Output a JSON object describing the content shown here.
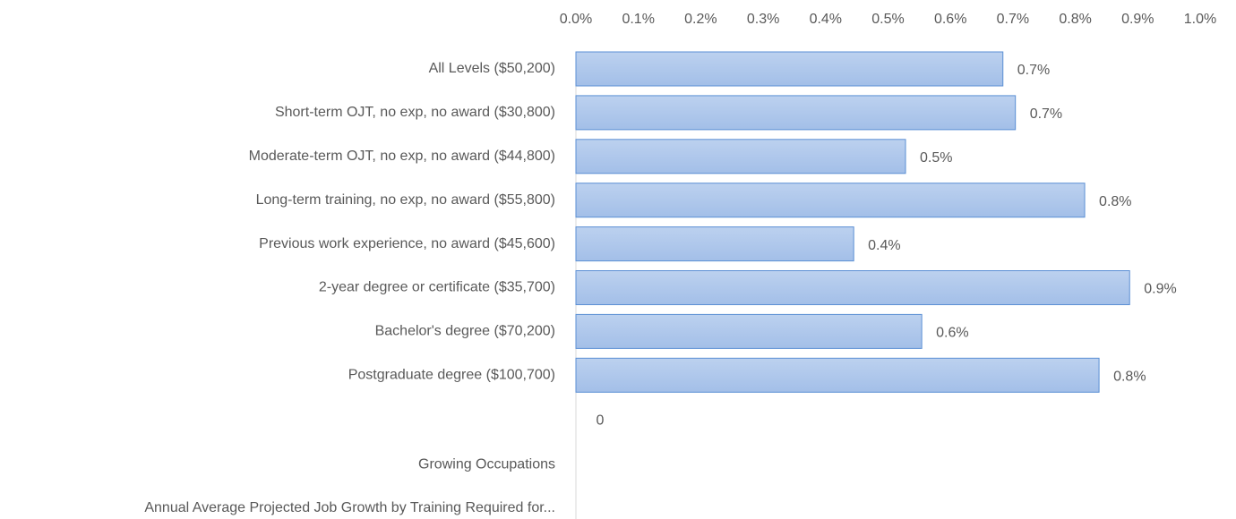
{
  "chart_data": {
    "type": "bar",
    "orientation": "horizontal",
    "categories": [
      "All Levels ($50,200)",
      "Short-term OJT, no exp, no award ($30,800)",
      "Moderate-term OJT, no exp, no award ($44,800)",
      "Long-term training, no exp, no award ($55,800)",
      "Previous work experience, no award ($45,600)",
      "2-year degree or certificate ($35,700)",
      "Bachelor's degree ($70,200)",
      "Postgraduate degree ($100,700)"
    ],
    "values": [
      0.684,
      0.704,
      0.528,
      0.815,
      0.445,
      0.887,
      0.554,
      0.838
    ],
    "value_labels": [
      "0.7%",
      "0.7%",
      "0.5%",
      "0.8%",
      "0.4%",
      "0.9%",
      "0.6%",
      "0.8%"
    ],
    "color": "#a9c3e9",
    "edge_color": "#5b8fd4",
    "xlim": [
      0,
      1.0
    ],
    "xticks": [
      {
        "value": 0,
        "label": "0.0%"
      },
      {
        "value": 0.1,
        "label": "0.1%"
      },
      {
        "value": 0.2,
        "label": "0.2%"
      },
      {
        "value": 0.3,
        "label": "0.3%"
      },
      {
        "value": 0.4,
        "label": "0.4%"
      },
      {
        "value": 0.5,
        "label": "0.5%"
      },
      {
        "value": 0.6,
        "label": "0.6%"
      },
      {
        "value": 0.7,
        "label": "0.7%"
      },
      {
        "value": 0.8,
        "label": "0.8%"
      },
      {
        "value": 0.9,
        "label": "0.9%"
      },
      {
        "value": 1.0,
        "label": "1.0%"
      }
    ],
    "grid": false,
    "annotations": [
      "0",
      "Growing Occupations",
      "Annual Average Projected Job Growth by Training Required for..."
    ]
  }
}
